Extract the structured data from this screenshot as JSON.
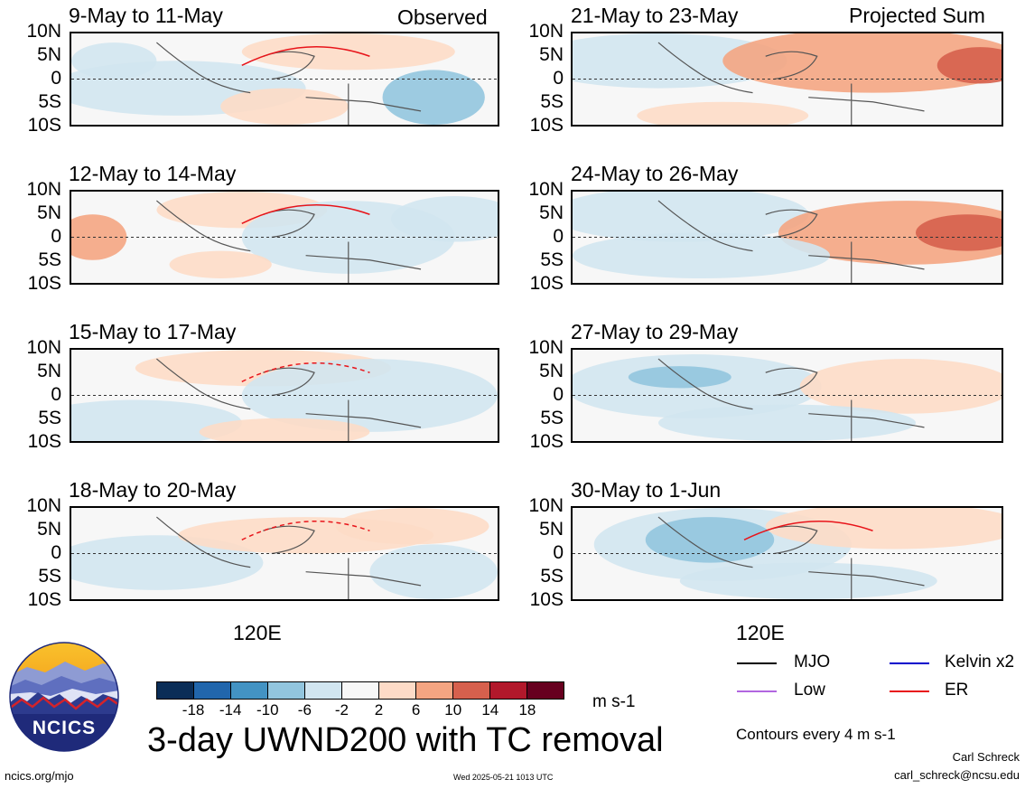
{
  "panels_left": [
    {
      "period": "9-May to 11-May",
      "tag": "Observed"
    },
    {
      "period": "12-May to 14-May",
      "tag": ""
    },
    {
      "period": "15-May to 17-May",
      "tag": ""
    },
    {
      "period": "18-May to 20-May",
      "tag": ""
    }
  ],
  "panels_right": [
    {
      "period": "21-May to 23-May",
      "tag": "Projected Sum"
    },
    {
      "period": "24-May to 26-May",
      "tag": ""
    },
    {
      "period": "27-May to 29-May",
      "tag": ""
    },
    {
      "period": "30-May to 1-Jun",
      "tag": ""
    }
  ],
  "lat_labels": [
    "10N",
    "5N",
    "0",
    "5S",
    "10S"
  ],
  "lon_label": "120E",
  "colorbar": {
    "colors": [
      "#0a2d57",
      "#2166ac",
      "#4393c3",
      "#92c5de",
      "#d1e5f0",
      "#f7f7f7",
      "#fddbc7",
      "#f4a582",
      "#d6604d",
      "#b2182b",
      "#67001f"
    ],
    "ticks": [
      "-18",
      "-14",
      "-10",
      "-6",
      "-2",
      "2",
      "6",
      "10",
      "14",
      "18"
    ],
    "units": "m s-1"
  },
  "main_title": "3-day UWND200 with TC removal",
  "legend": {
    "items": [
      {
        "label": "MJO",
        "color": "#000000"
      },
      {
        "label": "Kelvin x2",
        "color": "#0000cc"
      },
      {
        "label": "Low",
        "color": "#b266e0"
      },
      {
        "label": "ER",
        "color": "#e8141a"
      }
    ],
    "contour_note": "Contours every 4 m s-1"
  },
  "logo_text": "NCICS",
  "footer": {
    "url": "ncics.org/mjo",
    "timestamp": "Wed 2025-05-21 1013 UTC",
    "author": "Carl Schreck",
    "email": "carl_schreck@ncsu.edu"
  }
}
